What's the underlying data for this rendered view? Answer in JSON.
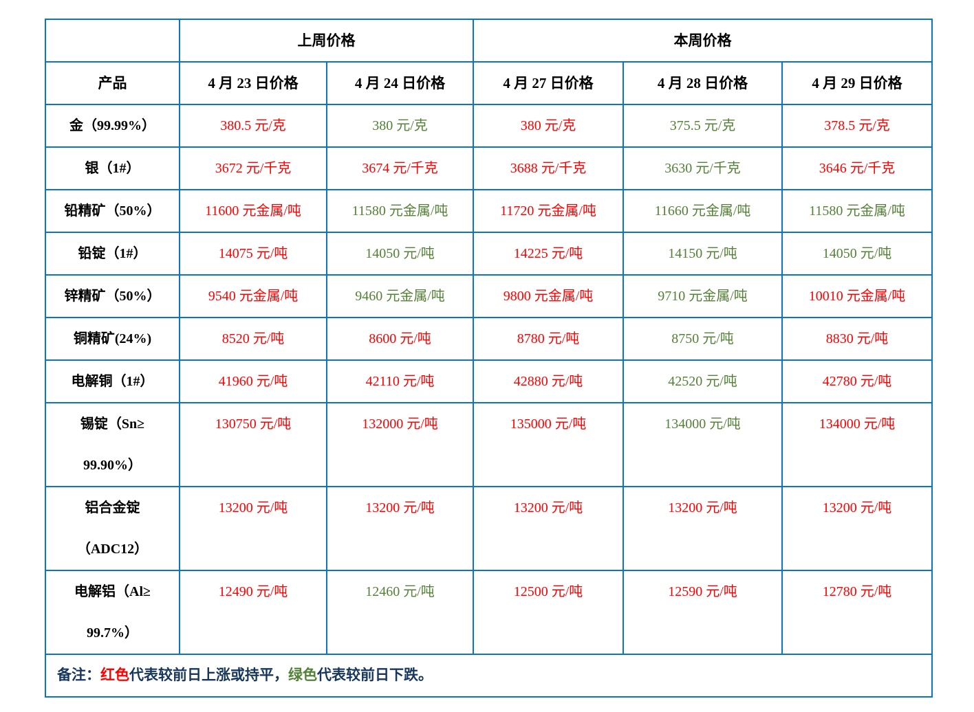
{
  "palette": {
    "border_blue": "#0b74c4",
    "up_red": "#ff0000",
    "down_green": "#538135",
    "note_dark": "#17365d",
    "header_black": "#000000",
    "background": "#ffffff"
  },
  "table": {
    "group_headers": [
      {
        "label": "",
        "span": 1
      },
      {
        "label": "上周价格",
        "span": 2
      },
      {
        "label": "本周价格",
        "span": 3
      }
    ],
    "column_headers": [
      "产品",
      "4 月 23 日价格",
      "4 月 24 日价格",
      "4 月 27 日价格",
      "4 月 28 日价格",
      "4 月 29 日价格"
    ],
    "rows": [
      {
        "product": "金（99.99%）",
        "tall": false,
        "values": [
          {
            "text": "380.5 元/克",
            "trend": "up"
          },
          {
            "text": "380 元/克",
            "trend": "down"
          },
          {
            "text": "380 元/克",
            "trend": "up"
          },
          {
            "text": "375.5 元/克",
            "trend": "down"
          },
          {
            "text": "378.5 元/克",
            "trend": "up"
          }
        ]
      },
      {
        "product": "银（1#）",
        "tall": false,
        "values": [
          {
            "text": "3672 元/千克",
            "trend": "up"
          },
          {
            "text": "3674 元/千克",
            "trend": "up"
          },
          {
            "text": "3688 元/千克",
            "trend": "up"
          },
          {
            "text": "3630 元/千克",
            "trend": "down"
          },
          {
            "text": "3646 元/千克",
            "trend": "up"
          }
        ]
      },
      {
        "product": "铅精矿（50%）",
        "tall": false,
        "values": [
          {
            "text": "11600 元金属/吨",
            "trend": "up"
          },
          {
            "text": "11580 元金属/吨",
            "trend": "down"
          },
          {
            "text": "11720 元金属/吨",
            "trend": "up"
          },
          {
            "text": "11660 元金属/吨",
            "trend": "down"
          },
          {
            "text": "11580 元金属/吨",
            "trend": "down"
          }
        ]
      },
      {
        "product": "铅锭（1#）",
        "tall": false,
        "values": [
          {
            "text": "14075 元/吨",
            "trend": "up"
          },
          {
            "text": "14050 元/吨",
            "trend": "down"
          },
          {
            "text": "14225 元/吨",
            "trend": "up"
          },
          {
            "text": "14150 元/吨",
            "trend": "down"
          },
          {
            "text": "14050 元/吨",
            "trend": "down"
          }
        ]
      },
      {
        "product": "锌精矿（50%）",
        "tall": false,
        "values": [
          {
            "text": "9540 元金属/吨",
            "trend": "up"
          },
          {
            "text": "9460 元金属/吨",
            "trend": "down"
          },
          {
            "text": "9800 元金属/吨",
            "trend": "up"
          },
          {
            "text": "9710 元金属/吨",
            "trend": "down"
          },
          {
            "text": "10010 元金属/吨",
            "trend": "up"
          }
        ]
      },
      {
        "product": "铜精矿(24%)",
        "tall": false,
        "values": [
          {
            "text": "8520 元/吨",
            "trend": "up"
          },
          {
            "text": "8600 元/吨",
            "trend": "up"
          },
          {
            "text": "8780 元/吨",
            "trend": "up"
          },
          {
            "text": "8750 元/吨",
            "trend": "down"
          },
          {
            "text": "8830 元/吨",
            "trend": "up"
          }
        ]
      },
      {
        "product": "电解铜（1#）",
        "tall": false,
        "values": [
          {
            "text": "41960 元/吨",
            "trend": "up"
          },
          {
            "text": "42110 元/吨",
            "trend": "up"
          },
          {
            "text": "42880 元/吨",
            "trend": "up"
          },
          {
            "text": "42520 元/吨",
            "trend": "down"
          },
          {
            "text": "42780 元/吨",
            "trend": "up"
          }
        ]
      },
      {
        "product": "锡锭（Sn≥\n99.90%）",
        "tall": true,
        "values": [
          {
            "text": "130750 元/吨",
            "trend": "up"
          },
          {
            "text": "132000 元/吨",
            "trend": "up"
          },
          {
            "text": "135000 元/吨",
            "trend": "up"
          },
          {
            "text": "134000 元/吨",
            "trend": "down"
          },
          {
            "text": "134000 元/吨",
            "trend": "up"
          }
        ]
      },
      {
        "product": "铝合金锭\n（ADC12）",
        "tall": true,
        "values": [
          {
            "text": "13200 元/吨",
            "trend": "up"
          },
          {
            "text": "13200 元/吨",
            "trend": "up"
          },
          {
            "text": "13200 元/吨",
            "trend": "up"
          },
          {
            "text": "13200 元/吨",
            "trend": "up"
          },
          {
            "text": "13200 元/吨",
            "trend": "up"
          }
        ]
      },
      {
        "product": "电解铝（Al≥\n99.7%）",
        "tall": true,
        "values": [
          {
            "text": "12490 元/吨",
            "trend": "up"
          },
          {
            "text": "12460 元/吨",
            "trend": "down"
          },
          {
            "text": "12500 元/吨",
            "trend": "up"
          },
          {
            "text": "12590 元/吨",
            "trend": "up"
          },
          {
            "text": "12780 元/吨",
            "trend": "up"
          }
        ]
      }
    ],
    "note_segments": [
      {
        "text": "备注：",
        "color": "dark"
      },
      {
        "text": "红色",
        "color": "red"
      },
      {
        "text": "代表较前日上涨或持平，",
        "color": "dark"
      },
      {
        "text": "绿色",
        "color": "green"
      },
      {
        "text": "代表较前日下跌。",
        "color": "dark"
      }
    ]
  }
}
